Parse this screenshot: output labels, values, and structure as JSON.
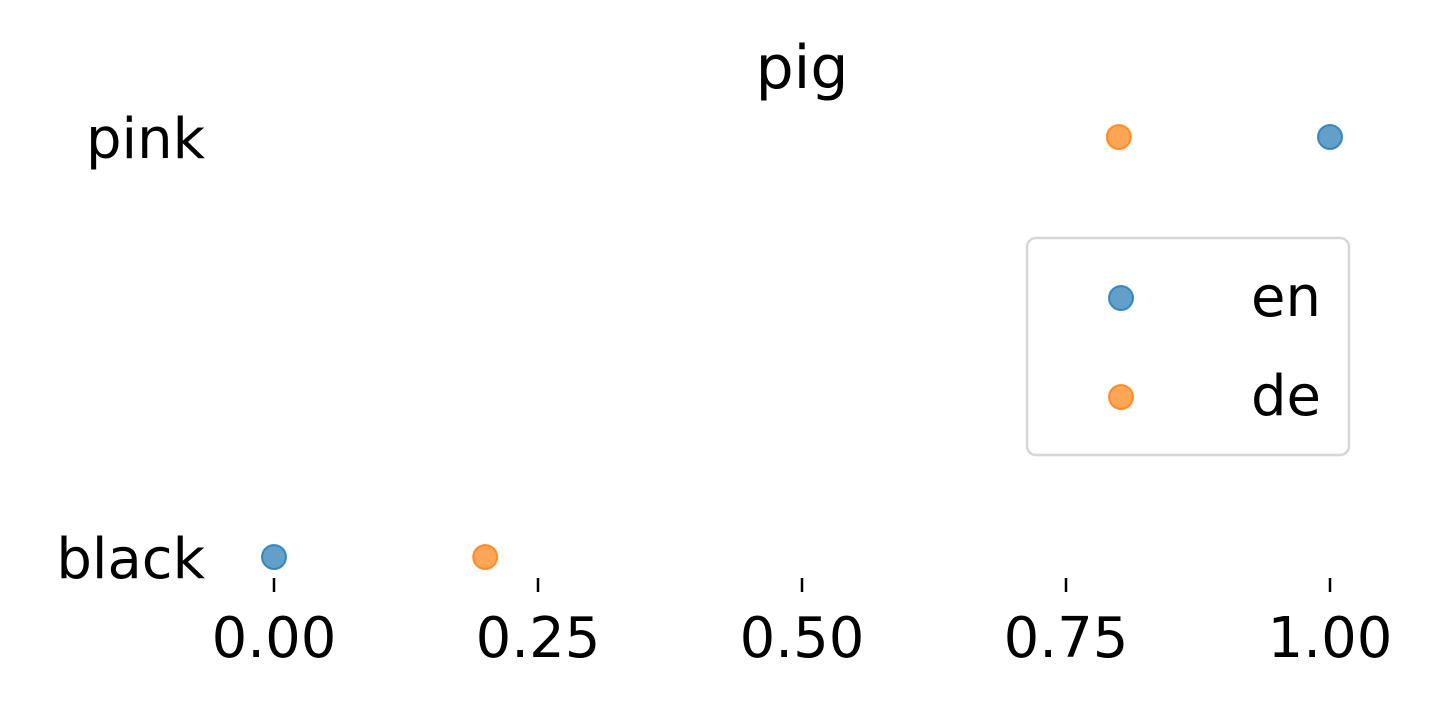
{
  "chart_data": {
    "type": "scatter",
    "title": "pig",
    "xlabel": "",
    "ylabel": "",
    "xlim": [
      -0.14,
      1.03
    ],
    "x_ticks": [
      "0.00",
      "0.25",
      "0.50",
      "0.75",
      "1.00"
    ],
    "x_tick_values": [
      0.0,
      0.25,
      0.5,
      0.75,
      1.0
    ],
    "categories": [
      "black",
      "pink"
    ],
    "series": [
      {
        "name": "en",
        "color": "#1f77b4",
        "values": [
          0.0,
          1.0
        ]
      },
      {
        "name": "de",
        "color": "#ff7f0e",
        "values": [
          0.2,
          0.8
        ]
      }
    ],
    "grid": false,
    "legend": {
      "position": "center-right",
      "entries": [
        "en",
        "de"
      ]
    }
  }
}
